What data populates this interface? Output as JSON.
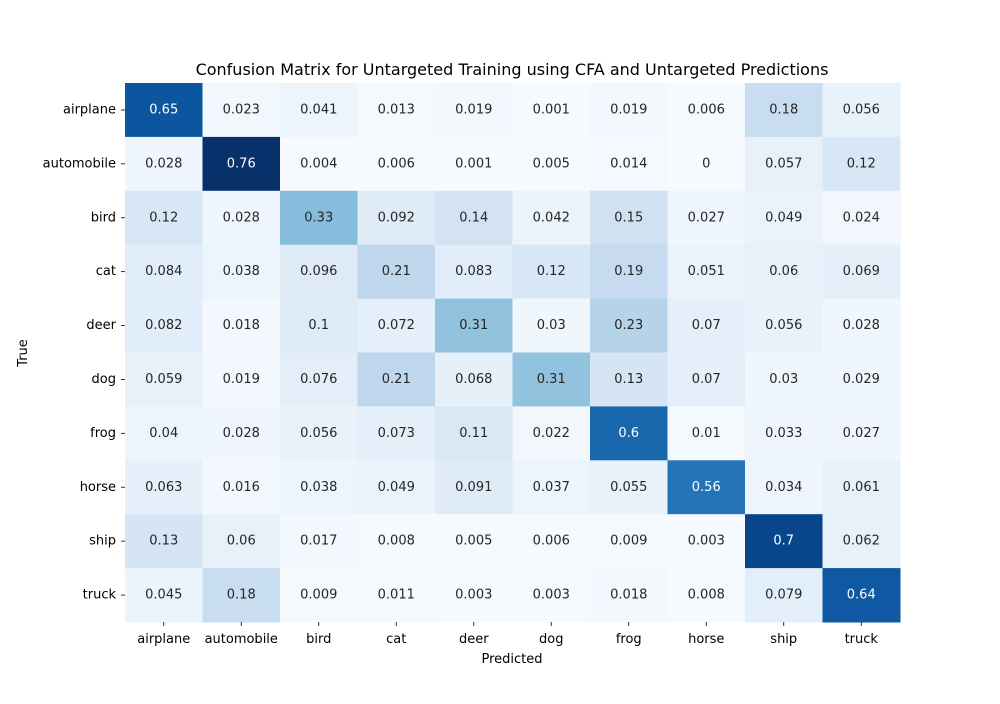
{
  "chart_data": {
    "type": "heatmap",
    "title": "Confusion Matrix for Untargeted Training using CFA and Untargeted Predictions",
    "xlabel": "Predicted",
    "ylabel": "True",
    "x_categories": [
      "airplane",
      "automobile",
      "bird",
      "cat",
      "deer",
      "dog",
      "frog",
      "horse",
      "ship",
      "truck"
    ],
    "y_categories": [
      "airplane",
      "automobile",
      "bird",
      "cat",
      "deer",
      "dog",
      "frog",
      "horse",
      "ship",
      "truck"
    ],
    "colormap": "Blues",
    "value_range": [
      0,
      0.76
    ],
    "matrix_labels": [
      [
        "0.65",
        "0.023",
        "0.041",
        "0.013",
        "0.019",
        "0.001",
        "0.019",
        "0.006",
        "0.18",
        "0.056"
      ],
      [
        "0.028",
        "0.76",
        "0.004",
        "0.006",
        "0.001",
        "0.005",
        "0.014",
        "0",
        "0.057",
        "0.12"
      ],
      [
        "0.12",
        "0.028",
        "0.33",
        "0.092",
        "0.14",
        "0.042",
        "0.15",
        "0.027",
        "0.049",
        "0.024"
      ],
      [
        "0.084",
        "0.038",
        "0.096",
        "0.21",
        "0.083",
        "0.12",
        "0.19",
        "0.051",
        "0.06",
        "0.069"
      ],
      [
        "0.082",
        "0.018",
        "0.1",
        "0.072",
        "0.31",
        "0.03",
        "0.23",
        "0.07",
        "0.056",
        "0.028"
      ],
      [
        "0.059",
        "0.019",
        "0.076",
        "0.21",
        "0.068",
        "0.31",
        "0.13",
        "0.07",
        "0.03",
        "0.029"
      ],
      [
        "0.04",
        "0.028",
        "0.056",
        "0.073",
        "0.11",
        "0.022",
        "0.6",
        "0.01",
        "0.033",
        "0.027"
      ],
      [
        "0.063",
        "0.016",
        "0.038",
        "0.049",
        "0.091",
        "0.037",
        "0.055",
        "0.56",
        "0.034",
        "0.061"
      ],
      [
        "0.13",
        "0.06",
        "0.017",
        "0.008",
        "0.005",
        "0.006",
        "0.009",
        "0.003",
        "0.7",
        "0.062"
      ],
      [
        "0.045",
        "0.18",
        "0.009",
        "0.011",
        "0.003",
        "0.003",
        "0.018",
        "0.008",
        "0.079",
        "0.64"
      ]
    ],
    "colorbar": false,
    "grid": false
  }
}
